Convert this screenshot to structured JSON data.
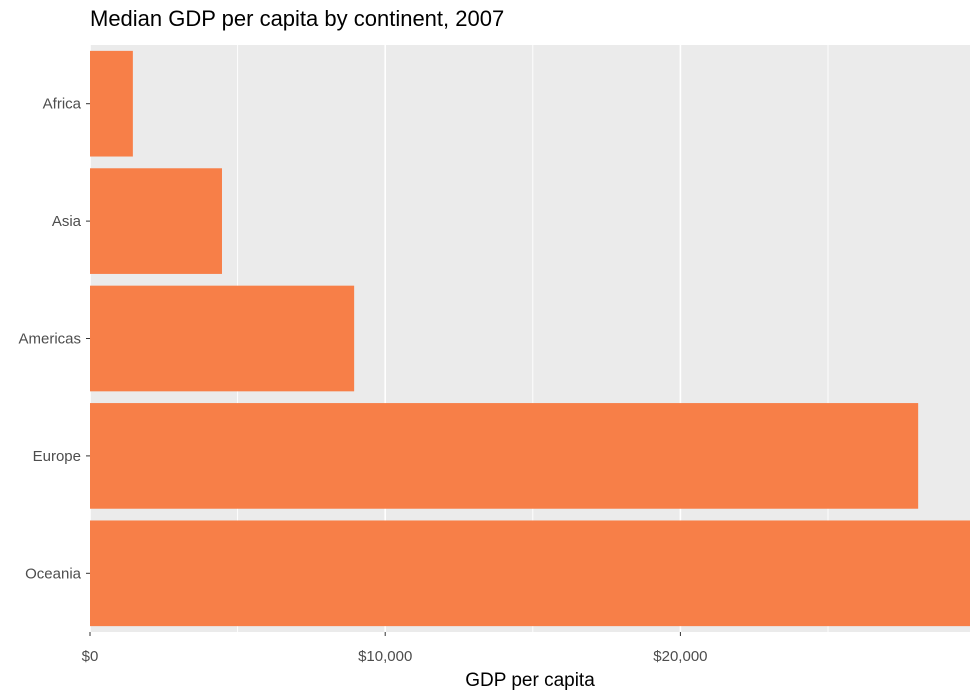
{
  "chart_data": {
    "type": "bar",
    "orientation": "horizontal",
    "title": "Median GDP per capita by continent, 2007",
    "xlabel": "GDP per capita",
    "ylabel": "",
    "categories": [
      "Africa",
      "Asia",
      "Americas",
      "Europe",
      "Oceania"
    ],
    "values": [
      1452,
      4471,
      8948,
      28054,
      29810
    ],
    "xlim": [
      0,
      29810
    ],
    "x_ticks": [
      0,
      10000,
      20000
    ],
    "x_tick_labels": [
      "$0",
      "$10,000",
      "$20,000"
    ],
    "grid": true,
    "legend": "none",
    "bar_color": "#f77f48",
    "panel_background": "#ebebeb",
    "grid_color": "#ffffff"
  }
}
